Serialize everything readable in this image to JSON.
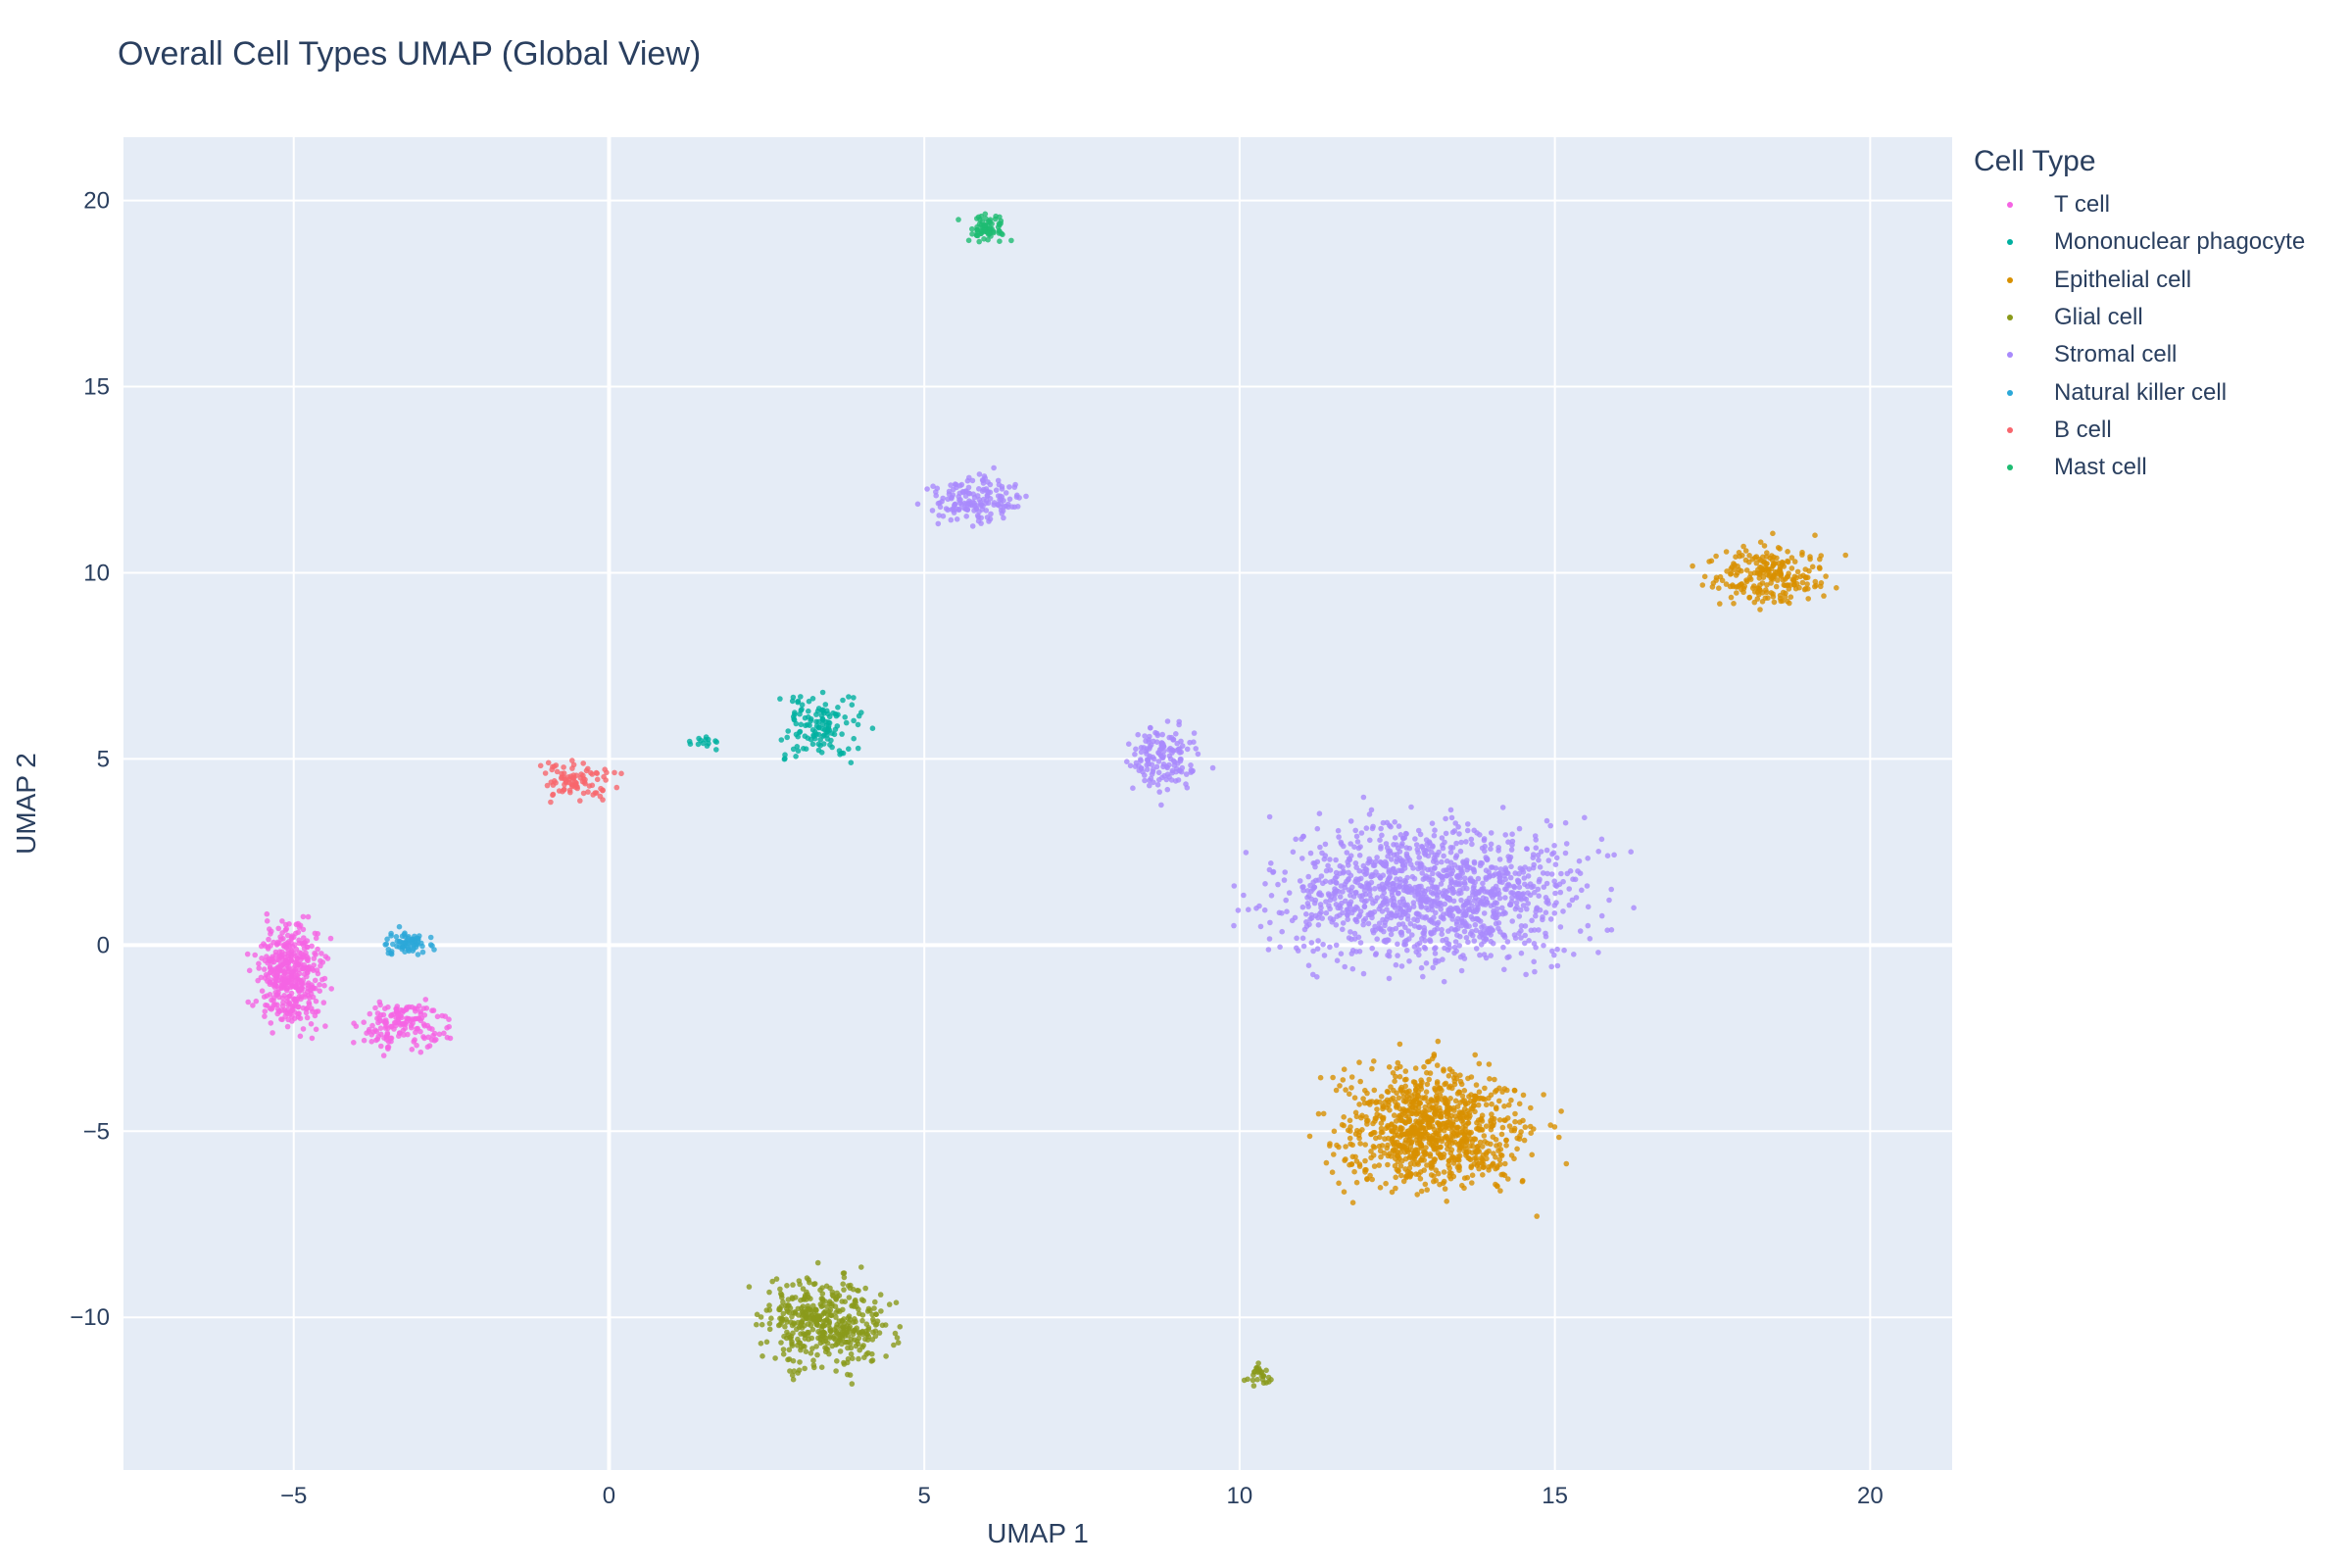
{
  "chart_data": {
    "type": "scatter",
    "title": "Overall Cell Types UMAP (Global View)",
    "xlabel": "UMAP 1",
    "ylabel": "UMAP 2",
    "xlim": [
      -7.7,
      21.3
    ],
    "ylim": [
      -14.1,
      21.7
    ],
    "xticks": [
      -5,
      0,
      5,
      10,
      15,
      20
    ],
    "yticks": [
      -10,
      -5,
      0,
      5,
      10,
      15,
      20
    ],
    "xtick_labels": [
      "−5",
      "0",
      "5",
      "10",
      "15",
      "20"
    ],
    "ytick_labels": [
      "−10",
      "−5",
      "0",
      "5",
      "10",
      "15",
      "20"
    ],
    "grid": true,
    "legend_title": "Cell Type",
    "legend_position": "right",
    "series": [
      {
        "name": "T cell",
        "color": "#f564e3",
        "clusters": [
          {
            "x": [
              -5.9,
              -4.2
            ],
            "y": [
              -3.0,
              1.3
            ],
            "n": 420
          },
          {
            "x": [
              -4.3,
              -2.2
            ],
            "y": [
              -3.3,
              -1.0
            ],
            "n": 160
          }
        ]
      },
      {
        "name": "Mononuclear phagocyte",
        "color": "#00b0a0",
        "clusters": [
          {
            "x": [
              2.3,
              4.4
            ],
            "y": [
              4.4,
              7.4
            ],
            "n": 130
          },
          {
            "x": [
              0.6,
              2.2
            ],
            "y": [
              5.2,
              5.7
            ],
            "n": 14
          }
        ]
      },
      {
        "name": "Epithelial cell",
        "color": "#d89000",
        "clusters": [
          {
            "x": [
              10.7,
              15.4
            ],
            "y": [
              -7.5,
              -2.3
            ],
            "n": 950
          },
          {
            "x": [
              16.9,
              19.9
            ],
            "y": [
              8.6,
              11.3
            ],
            "n": 230
          }
        ]
      },
      {
        "name": "Glial cell",
        "color": "#8a9a1a",
        "clusters": [
          {
            "x": [
              1.9,
              5.0
            ],
            "y": [
              -12.1,
              -8.2
            ],
            "n": 430
          },
          {
            "x": [
              10.0,
              10.6
            ],
            "y": [
              -12.0,
              -11.0
            ],
            "n": 28
          }
        ]
      },
      {
        "name": "Stromal cell",
        "color": "#a98afc",
        "clusters": [
          {
            "x": [
              9.2,
              16.9
            ],
            "y": [
              -1.6,
              4.4
            ],
            "n": 1250
          },
          {
            "x": [
              7.9,
              9.7
            ],
            "y": [
              3.5,
              6.5
            ],
            "n": 150
          },
          {
            "x": [
              4.6,
              7.1
            ],
            "y": [
              10.9,
              13.0
            ],
            "n": 160
          }
        ]
      },
      {
        "name": "Natural killer cell",
        "color": "#2ca8d8",
        "clusters": [
          {
            "x": [
              -3.8,
              -2.6
            ],
            "y": [
              -0.5,
              0.6
            ],
            "n": 70
          }
        ]
      },
      {
        "name": "B cell",
        "color": "#f8666d",
        "clusters": [
          {
            "x": [
              -1.4,
              0.5
            ],
            "y": [
              3.5,
              5.3
            ],
            "n": 90
          }
        ]
      },
      {
        "name": "Mast cell",
        "color": "#1ebc72",
        "clusters": [
          {
            "x": [
              5.5,
              6.5
            ],
            "y": [
              18.7,
              19.8
            ],
            "n": 70
          }
        ]
      }
    ]
  }
}
